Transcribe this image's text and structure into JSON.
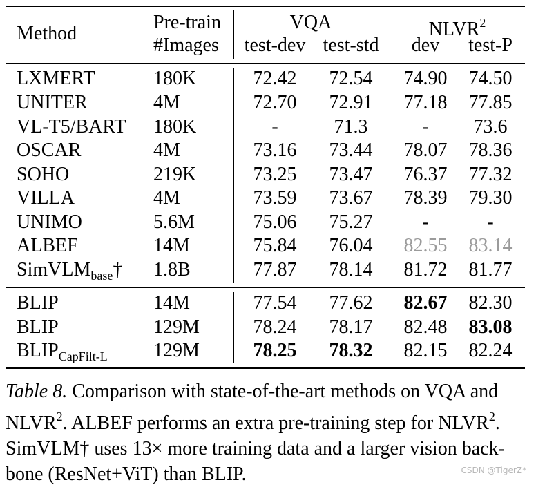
{
  "table": {
    "header": {
      "method": "Method",
      "pretrain_line1": "Pre-train",
      "pretrain_line2": "#Images",
      "vqa": "VQA",
      "nlvr_base": "NLVR",
      "nlvr_sup": "2",
      "vqa_testdev": "test-dev",
      "vqa_teststd": "test-std",
      "nlvr_dev": "dev",
      "nlvr_testp": "test-P"
    },
    "rows": [
      {
        "method": "LXMERT",
        "method_sub": "",
        "method_suffix": "",
        "images": "180K",
        "testdev": "72.42",
        "teststd": "72.54",
        "dev": "74.90",
        "testp": "74.50"
      },
      {
        "method": "UNITER",
        "method_sub": "",
        "method_suffix": "",
        "images": "4M",
        "testdev": "72.70",
        "teststd": "72.91",
        "dev": "77.18",
        "testp": "77.85"
      },
      {
        "method": "VL-T5/BART",
        "method_sub": "",
        "method_suffix": "",
        "images": "180K",
        "testdev": "-",
        "teststd": "71.3",
        "dev": "-",
        "testp": "73.6"
      },
      {
        "method": "OSCAR",
        "method_sub": "",
        "method_suffix": "",
        "images": "4M",
        "testdev": "73.16",
        "teststd": "73.44",
        "dev": "78.07",
        "testp": "78.36"
      },
      {
        "method": "SOHO",
        "method_sub": "",
        "method_suffix": "",
        "images": "219K",
        "testdev": "73.25",
        "teststd": "73.47",
        "dev": "76.37",
        "testp": "77.32"
      },
      {
        "method": "VILLA",
        "method_sub": "",
        "method_suffix": "",
        "images": "4M",
        "testdev": "73.59",
        "teststd": "73.67",
        "dev": "78.39",
        "testp": "79.30"
      },
      {
        "method": "UNIMO",
        "method_sub": "",
        "method_suffix": "",
        "images": "5.6M",
        "testdev": "75.06",
        "teststd": "75.27",
        "dev": "-",
        "testp": "-"
      },
      {
        "method": "ALBEF",
        "method_sub": "",
        "method_suffix": "",
        "images": "14M",
        "testdev": "75.84",
        "teststd": "76.04",
        "dev": "82.55",
        "testp": "83.14"
      },
      {
        "method": "SimVLM",
        "method_sub": "base",
        "method_suffix": "†",
        "images": "1.8B",
        "testdev": "77.87",
        "teststd": "78.14",
        "dev": "81.72",
        "testp": "81.77"
      },
      {
        "method": "BLIP",
        "method_sub": "",
        "method_suffix": "",
        "images": "14M",
        "testdev": "77.54",
        "teststd": "77.62",
        "dev": "82.67",
        "testp": "82.30"
      },
      {
        "method": "BLIP",
        "method_sub": "",
        "method_suffix": "",
        "images": "129M",
        "testdev": "78.24",
        "teststd": "78.17",
        "dev": "82.48",
        "testp": "83.08"
      },
      {
        "method": "BLIP",
        "method_sub": "CapFilt-L",
        "method_suffix": "",
        "images": "129M",
        "testdev": "78.25",
        "teststd": "78.32",
        "dev": "82.15",
        "testp": "82.24"
      }
    ]
  },
  "caption": {
    "label": "Table 8.",
    "line1_rest": " Comparison with state-of-the-art methods on VQA and",
    "line2_a": "NLVR",
    "line2_sup1": "2",
    "line2_b": ". ALBEF performs an extra pre-training step for NLVR",
    "line2_sup2": "2",
    "line2_c": ".",
    "line3": "SimVLM† uses 13× more training data and a larger vision back-",
    "line4": "bone (ResNet+ViT) than BLIP."
  },
  "watermark": "CSDN @TigerZ*",
  "colors": {
    "text": "#000000",
    "gray_value": "#9b9b9b",
    "watermark": "#b8b8b8"
  }
}
